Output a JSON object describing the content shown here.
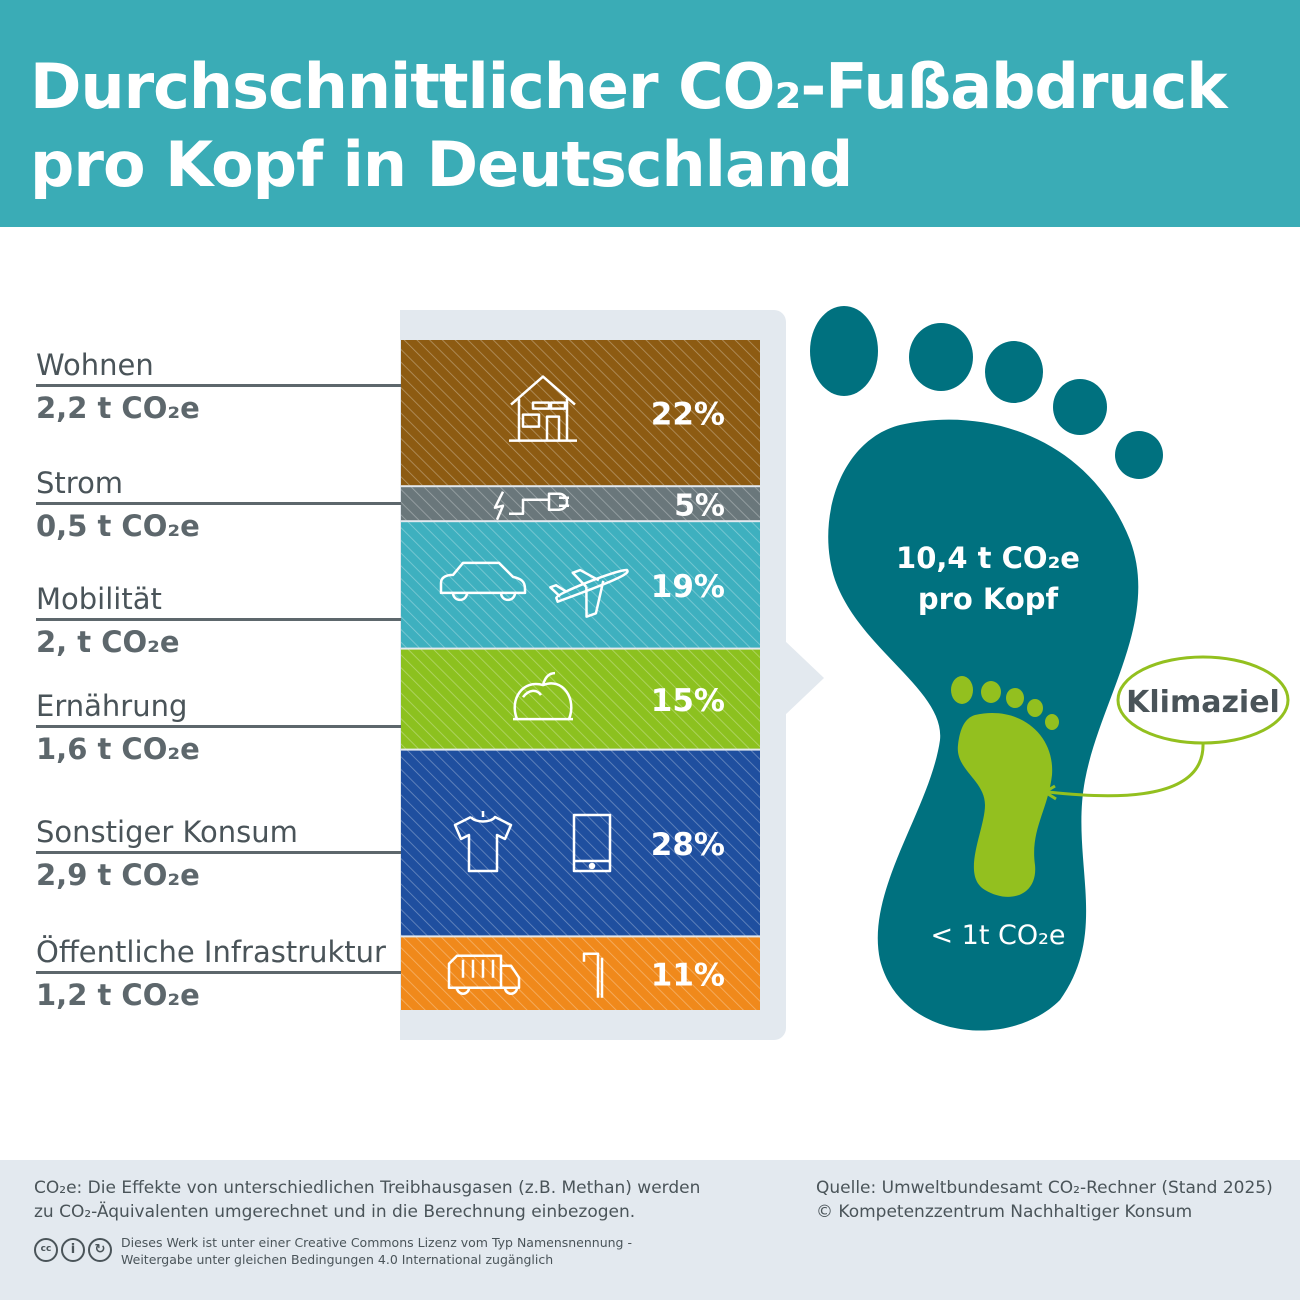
{
  "title_line1": "Durchschnittlicher CO₂-Fußabdruck",
  "title_line2": "pro Kopf in Deutschland",
  "chart_data": {
    "type": "bar",
    "stacked": true,
    "categories": [
      "Wohnen",
      "Strom",
      "Mobilität",
      "Ernährung",
      "Sonstiger Konsum",
      "Öffentliche Infrastruktur"
    ],
    "values": [
      22,
      5,
      19,
      15,
      28,
      11
    ],
    "value_labels": [
      "22%",
      "5%",
      "19%",
      "15%",
      "28%",
      "11%"
    ],
    "amounts": [
      "2,2 t CO₂e",
      "0,5 t CO₂e",
      "2, t CO₂e",
      "1,6 t CO₂e",
      "2,9 t CO₂e",
      "1,2 t CO₂e"
    ],
    "colors": [
      "#8d5b12",
      "#6a777b",
      "#3eb0bf",
      "#8cc11f",
      "#1f4f9f",
      "#f0891b"
    ],
    "icons": [
      [
        "house-icon"
      ],
      [
        "plug-icon"
      ],
      [
        "car-icon",
        "plane-icon"
      ],
      [
        "food-icon"
      ],
      [
        "shirt-icon",
        "phone-icon"
      ],
      [
        "garbage-truck-icon",
        "street-lamp-icon"
      ]
    ]
  },
  "footprint": {
    "total": "10,4 t CO₂e",
    "per_head": "pro Kopf",
    "goal_label": "Klimaziel",
    "goal_value": "< 1t CO₂e",
    "foot_color": "#00717f",
    "goal_color": "#93c01f"
  },
  "footer": {
    "note_line1": "CO₂e: Die Effekte von unterschiedlichen Treibhausgasen (z.B. Methan) werden",
    "note_line2": "zu CO₂-Äquivalenten umgerechnet und in die Berechnung einbezogen.",
    "license_line1": "Dieses Werk ist unter einer Creative Commons Lizenz vom Typ Namensnennung -",
    "license_line2": "Weitergabe unter gleichen Bedingungen 4.0 International zugänglich",
    "source": "Quelle: Umweltbundesamt CO₂-Rechner (Stand 2025)",
    "copyright": "© Kompetenzzentrum Nachhaltiger Konsum"
  }
}
